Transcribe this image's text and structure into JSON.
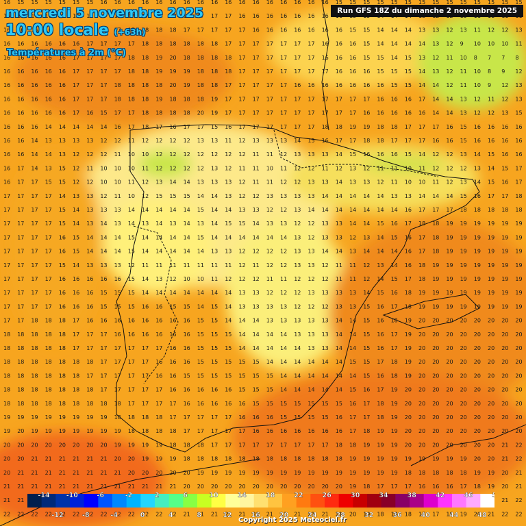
{
  "header": {
    "date": "mercredi 5 novembre 2025",
    "time": "10:00 locale",
    "offset": "(+63h)",
    "variable": "Températures à 2m (°C)",
    "run": "Run GFS 18Z du dimanche 2 novembre 2025"
  },
  "footer": {
    "copyright": "Copyright 2025 Meteociel.fr"
  },
  "legend": {
    "top_labels": [
      "-14",
      "-10",
      "-6",
      "-2",
      "2",
      "6",
      "10",
      "14",
      "18",
      "22",
      "26",
      "30",
      "34",
      "38",
      "42",
      "46",
      "50"
    ],
    "bottom_labels": [
      "-12",
      "-8",
      "-4",
      "0",
      "4",
      "8",
      "12",
      "16",
      "20",
      "24",
      "28",
      "32",
      "36",
      "40",
      "44",
      "48",
      "52"
    ],
    "colors": [
      "#001f4e",
      "#002a7a",
      "#0033a8",
      "#0022d8",
      "#0000ff",
      "#0055ff",
      "#0088ff",
      "#00b4ff",
      "#22d6ff",
      "#44eebf",
      "#55ff88",
      "#88ff44",
      "#c8ff22",
      "#ffff44",
      "#ffff99",
      "#fff5a0",
      "#ffe070",
      "#ffc440",
      "#ffa020",
      "#ff7a10",
      "#ff5010",
      "#ff2a10",
      "#ee0000",
      "#c80000",
      "#a00010",
      "#880028",
      "#880066",
      "#aa0088",
      "#dd00cc",
      "#ff33ff",
      "#ff77ff",
      "#ffaaff",
      "#ffffff"
    ]
  },
  "grid_rows": [
    "16 15 15 15 15 15 15 16 16 16 16 16 16 16 16 16 16 16 16 16 16 16 16 16 15 15 15 15 15 15 15 15 15 15 15 15 15 15",
    "16 16 16 16 16 16 16 17 17 17 17 17 17 17 17 17 17 16 16 16 16 16 16 16 16 15 15 14 14 14 13 12 12 13 11 11 11 11",
    "16 16 16 16 16 17 17 17 17 17 18 18 18 17 17 17 17 17 16 16 16 16 16 16 16 15 15 14 14 14 13 13 12 13 11 12 12 13",
    "16 16 16 16 16 16 17 17 17 17 18 18 18 18 18 18 17 17 17 17 17 17 17 16 16 16 15 14 14 14 14 13 12 9 10 10 10 11",
    "16 16 16 16 16 17 17 17 17 18 18 19 20 18 18 18 18 17 17 17 17 17 17 16 16 16 15 15 14 15 13 12 11 10 8 7 7 8",
    "16 16 16 16 16 17 17 17 17 18 18 19 19 19 18 18 18 17 17 17 17 17 17 17 16 16 16 15 15 15 14 13 12 11 10 8 9 12",
    "16 16 16 16 16 17 17 17 18 18 18 18 20 19 18 18 17 17 17 17 17 16 16 16 16 16 16 16 15 15 14 14 12 11 10 9 12 13",
    "16 16 16 16 16 17 17 17 18 18 18 19 18 18 18 19 17 17 17 17 17 17 17 17 17 17 17 16 16 16 17 14 14 13 12 11 12 13",
    "16 16 16 16 16 17 16 15 17 17 18 18 18 18 20 19 17 17 17 17 17 17 17 17 17 17 16 16 16 16 16 14 14 13 12 12 13 15",
    "16 16 16 14 14 14 14 14 16 17 18 17 16 17 17 15 16 17 17 17 17 17 17 18 18 19 19 18 18 17 17 17 16 15 16 16 16 16",
    "16 16 14 13 13 13 13 12 12 11 12 12 12 12 13 13 11 12 13 13 13 14 15 16 17 17 18 18 17 17 17 16 16 15 16 16 16 16",
    "16 16 14 14 13 12 12 12 11 10 10 12 12 12 12 12 12 12 11 11 12 13 13 13 14 15 16 16 16 15 14 12 12 13 14 15 16 16",
    "16 17 14 13 15 12 11 10 10 10 11 12 12 12 12 13 12 11 11 10 11 12 12 11 12 13 12 11 11 10 11 12 12 12 13 14 15 17",
    "16 17 17 15 15 12 12 10 10 11 12 13 14 14 13 13 13 12 11 11 12 12 13 13 14 13 13 12 11 10 10 11 12 13 14 15 16 17",
    "17 17 17 17 14 13 13 12 11 10 12 15 15 15 14 14 13 12 12 13 13 13 13 14 14 14 14 14 13 13 14 14 14 15 16 17 17 18",
    "17 17 17 17 15 14 13 13 13 14 14 14 14 14 15 14 14 13 13 12 12 13 14 14 14 14 14 14 14 16 17 17 17 18 18 18 18 18",
    "17 17 17 17 15 14 13 14 13 14 13 14 13 14 13 14 15 15 14 13 13 12 12 13 13 14 14 15 16 17 18 18 19 19 19 19 19 19",
    "17 17 17 17 16 15 14 14 14 15 14 14 14 14 15 14 14 14 14 14 14 13 12 13 13 12 13 14 15 16 17 18 19 19 19 19 19 19",
    "17 17 17 17 16 15 14 14 14 15 14 14 14 14 14 13 13 12 12 12 12 13 13 14 14 13 14 14 14 16 17 18 19 19 19 19 19 19",
    "17 17 17 17 15 14 13 13 13 12 11 11 11 11 11 11 11 12 11 12 12 13 13 12 11 11 12 13 14 16 18 19 19 19 19 19 19 19",
    "17 17 17 17 16 16 16 16 16 15 14 13 12 10 10 11 12 12 12 11 11 12 12 12 11 11 12 14 15 17 18 19 19 19 19 19 19 19",
    "17 17 17 17 16 16 16 15 15 15 14 14 14 14 14 14 14 13 13 12 12 12 13 13 13 13 14 15 16 18 19 19 19 19 19 19 19 19",
    "17 17 17 17 16 16 16 15 15 15 16 16 15 15 14 15 14 13 13 13 13 12 12 12 13 13 15 16 17 18 19 19 19 19 19 19 19 19",
    "17 17 18 18 18 17 16 16 16 16 16 16 16 16 15 15 14 14 14 13 13 13 13 13 14 14 15 16 18 19 20 20 20 20 20 20 20 20",
    "18 18 18 18 18 17 17 17 16 16 16 16 16 16 15 15 15 14 14 14 14 13 13 13 14 14 15 16 17 19 20 20 20 20 20 20 20 20",
    "18 18 18 18 18 17 17 17 17 17 17 17 16 16 15 15 15 14 14 14 14 14 13 13 14 14 15 16 17 19 20 20 20 20 20 20 20 20",
    "18 18 18 18 18 18 18 17 17 17 17 16 16 16 15 15 15 15 15 14 14 14 14 14 14 15 15 17 18 19 20 20 20 20 20 20 20 20",
    "18 18 18 18 18 18 17 17 17 17 17 16 16 15 15 15 15 15 15 15 14 14 14 14 14 14 15 16 18 19 20 20 20 20 20 20 20 20",
    "18 18 18 18 18 18 18 17 17 17 17 17 16 16 16 16 16 15 15 15 14 14 14 14 14 15 16 17 19 20 20 20 20 20 20 20 20 20",
    "18 18 18 18 18 18 18 18 18 17 17 17 17 16 16 16 16 16 15 15 15 15 15 15 15 16 17 18 19 20 20 20 20 20 20 20 20 20",
    "19 19 19 19 19 19 19 19 18 18 18 18 17 17 17 17 17 16 16 16 15 15 15 15 16 17 17 18 19 20 20 20 20 20 20 20 20 20",
    "19 20 19 19 19 19 19 19 19 18 18 18 18 17 17 17 17 17 16 16 16 16 16 16 16 17 18 19 19 20 20 20 20 20 20 20 20 20",
    "20 20 20 20 20 20 20 20 19 19 19 19 18 18 18 17 17 17 17 17 17 17 17 17 18 18 19 19 19 20 20 20 20 20 20 20 21 22",
    "20 20 21 21 21 21 21 21 20 20 19 19 19 18 18 18 18 18 18 18 18 18 18 18 18 19 19 19 19 19 19 19 19 19 20 20 21 22",
    "20 21 21 21 21 21 21 21 21 20 20 20 20 20 19 19 19 19 19 19 19 19 19 19 19 19 19 19 19 18 18 18 18 18 19 19 20 21",
    "21 21 21 21 21 21 21 21 21 21 21 21 21 20 20 20 20 20 20 20 20 20 20 20 20 19 18 17 17 17 16 16 16 17 18 19 20 21",
    "21 21 21 21 21 21 21 22 22 21 21 21 21 21 21 20 20 20 20 20 20 20 20 20 20 19 18 17 17 17 16 16 17 18 19 20 21 22",
    "22 22 22 22 22 22 22 22 22 22 22 22 22 21 21 21 21 21 21 21 21 21 21 21 21 20 19 18 18 18 17 17 18 19 20 21 22 22"
  ]
}
